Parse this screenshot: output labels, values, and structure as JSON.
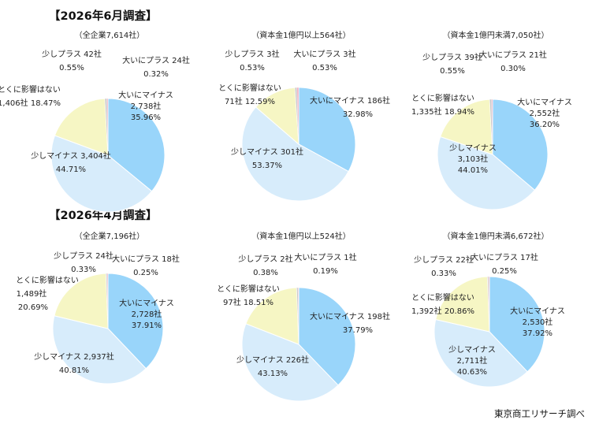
{
  "sections": [
    {
      "title": "【2026年6月調査】"
    },
    {
      "title": "【2026年4月調査】"
    }
  ],
  "source": "東京商工リサーチ調べ",
  "colors": {
    "major_minus": "#99d5fa",
    "minor_minus": "#d7ecfb",
    "no_effect": "#f6f6c4",
    "minor_plus": "#c9c9c9",
    "major_plus": "#f2b4c4",
    "edge": "#ffffff"
  },
  "chart_data": [
    {
      "type": "pie",
      "title": "（全企業7,614社）",
      "slices": [
        {
          "category": "大いにマイナス",
          "count_label": "2,738社",
          "percent_label": "35.96%",
          "value": 35.96
        },
        {
          "category": "少しマイナス",
          "count_label": "3,404社",
          "percent_label": "44.71%",
          "value": 44.71
        },
        {
          "category": "とくに影響はない",
          "count_label": "1,406社",
          "percent_label": "18.47%",
          "value": 18.47
        },
        {
          "category": "少しプラス",
          "count_label": "42社",
          "percent_label": "0.55%",
          "value": 0.55
        },
        {
          "category": "大いにプラス",
          "count_label": "24社",
          "percent_label": "0.32%",
          "value": 0.32
        }
      ]
    },
    {
      "type": "pie",
      "title": "（資本金1億円以上564社）",
      "slices": [
        {
          "category": "大いにマイナス",
          "count_label": "186社",
          "percent_label": "32.98%",
          "value": 32.98
        },
        {
          "category": "少しマイナス",
          "count_label": "301社",
          "percent_label": "53.37%",
          "value": 53.37
        },
        {
          "category": "とくに影響はない",
          "count_label": "71社",
          "percent_label": "12.59%",
          "value": 12.59
        },
        {
          "category": "少しプラス",
          "count_label": "3社",
          "percent_label": "0.53%",
          "value": 0.53
        },
        {
          "category": "大いにプラス",
          "count_label": "3社",
          "percent_label": "0.53%",
          "value": 0.53
        }
      ]
    },
    {
      "type": "pie",
      "title": "（資本金1億円未満7,050社）",
      "slices": [
        {
          "category": "大いにマイナス",
          "count_label": "2,552社",
          "percent_label": "36.20%",
          "value": 36.2
        },
        {
          "category": "少しマイナス",
          "count_label": "3,103社",
          "percent_label": "44.01%",
          "value": 44.01
        },
        {
          "category": "とくに影響はない",
          "count_label": "1,335社",
          "percent_label": "18.94%",
          "value": 18.94
        },
        {
          "category": "少しプラス",
          "count_label": "39社",
          "percent_label": "0.55%",
          "value": 0.55
        },
        {
          "category": "大いにプラス",
          "count_label": "21社",
          "percent_label": "0.30%",
          "value": 0.3
        }
      ]
    },
    {
      "type": "pie",
      "title": "（全企業7,196社）",
      "slices": [
        {
          "category": "大いにマイナス",
          "count_label": "2,728社",
          "percent_label": "37.91%",
          "value": 37.91
        },
        {
          "category": "少しマイナス",
          "count_label": "2,937社",
          "percent_label": "40.81%",
          "value": 40.81
        },
        {
          "category": "とくに影響はない",
          "count_label": "1,489社",
          "percent_label": "20.69%",
          "value": 20.69
        },
        {
          "category": "少しプラス",
          "count_label": "24社",
          "percent_label": "0.33%",
          "value": 0.33
        },
        {
          "category": "大いにプラス",
          "count_label": "18社",
          "percent_label": "0.25%",
          "value": 0.25
        }
      ]
    },
    {
      "type": "pie",
      "title": "（資本金1億円以上524社）",
      "slices": [
        {
          "category": "大いにマイナス",
          "count_label": "198社",
          "percent_label": "37.79%",
          "value": 37.79
        },
        {
          "category": "少しマイナス",
          "count_label": "226社",
          "percent_label": "43.13%",
          "value": 43.13
        },
        {
          "category": "とくに影響はない",
          "count_label": "97社",
          "percent_label": "18.51%",
          "value": 18.51
        },
        {
          "category": "少しプラス",
          "count_label": "2社",
          "percent_label": "0.38%",
          "value": 0.38
        },
        {
          "category": "大いにプラス",
          "count_label": "1社",
          "percent_label": "0.19%",
          "value": 0.19
        }
      ]
    },
    {
      "type": "pie",
      "title": "（資本金1億円未満6,672社）",
      "slices": [
        {
          "category": "大いにマイナス",
          "count_label": "2,530社",
          "percent_label": "37.92%",
          "value": 37.92
        },
        {
          "category": "少しマイナス",
          "count_label": "2,711社",
          "percent_label": "40.63%",
          "value": 40.63
        },
        {
          "category": "とくに影響はない",
          "count_label": "1,392社",
          "percent_label": "20.86%",
          "value": 20.86
        },
        {
          "category": "少しプラス",
          "count_label": "22社",
          "percent_label": "0.33%",
          "value": 0.33
        },
        {
          "category": "大いにプラス",
          "count_label": "17社",
          "percent_label": "0.25%",
          "value": 0.25
        }
      ]
    }
  ]
}
